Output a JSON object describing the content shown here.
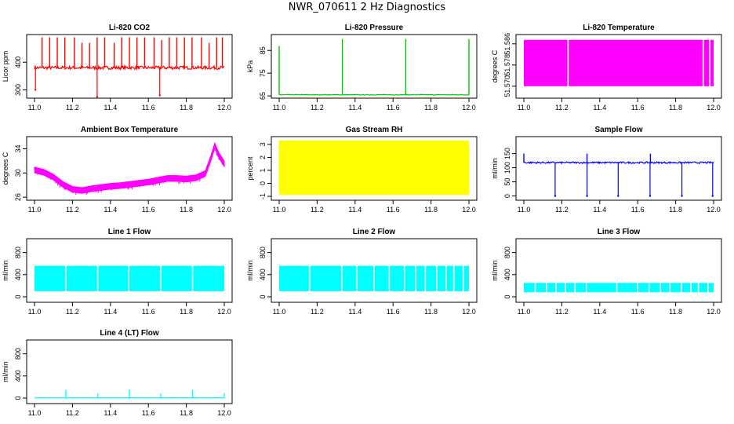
{
  "page_title": "NWR_070611  2 Hz Diagnostics",
  "colors": {
    "red": "#ff0000",
    "green": "#00cc00",
    "magenta": "#ff00ff",
    "yellow": "#ffff00",
    "blue": "#0000ff",
    "cyan": "#00ffff",
    "axis": "#000000"
  },
  "chart_data": [
    {
      "type": "line",
      "title": "Li-820 CO2",
      "ylabel": "Licor ppm",
      "color": "red",
      "xlim": [
        11.0,
        12.0
      ],
      "ylim": [
        270,
        500
      ],
      "xticks": [
        11.0,
        11.2,
        11.4,
        11.6,
        11.8,
        12.0
      ],
      "xtick_labels": [
        "11.0",
        "11.2",
        "11.4",
        "11.6",
        "11.8",
        "12.0"
      ],
      "yticks": [
        300,
        400
      ],
      "ytick_labels": [
        "300",
        "400"
      ],
      "series": [
        {
          "baseline": 380,
          "noise": 6,
          "spikes_up": [
            {
              "x": 11.04,
              "y": 490
            },
            {
              "x": 11.08,
              "y": 490
            },
            {
              "x": 11.12,
              "y": 490
            },
            {
              "x": 11.16,
              "y": 490
            },
            {
              "x": 11.21,
              "y": 490
            },
            {
              "x": 11.25,
              "y": 470
            },
            {
              "x": 11.29,
              "y": 470
            },
            {
              "x": 11.33,
              "y": 490
            },
            {
              "x": 11.37,
              "y": 490
            },
            {
              "x": 11.42,
              "y": 470
            },
            {
              "x": 11.46,
              "y": 490
            },
            {
              "x": 11.5,
              "y": 490
            },
            {
              "x": 11.54,
              "y": 490
            },
            {
              "x": 11.58,
              "y": 490
            },
            {
              "x": 11.63,
              "y": 490
            },
            {
              "x": 11.67,
              "y": 480
            },
            {
              "x": 11.71,
              "y": 490
            },
            {
              "x": 11.75,
              "y": 490
            },
            {
              "x": 11.79,
              "y": 490
            },
            {
              "x": 11.83,
              "y": 490
            },
            {
              "x": 11.88,
              "y": 490
            },
            {
              "x": 11.92,
              "y": 470
            },
            {
              "x": 11.96,
              "y": 490
            },
            {
              "x": 11.99,
              "y": 490
            }
          ],
          "spikes_down": [
            {
              "x": 11.005,
              "y": 300
            },
            {
              "x": 11.33,
              "y": 275
            },
            {
              "x": 11.66,
              "y": 280
            }
          ]
        }
      ]
    },
    {
      "type": "line",
      "title": "Li-820 Pressure",
      "ylabel": "kPa",
      "color": "green",
      "xlim": [
        11.0,
        12.0
      ],
      "ylim": [
        64,
        92
      ],
      "xticks": [
        11.0,
        11.2,
        11.4,
        11.6,
        11.8,
        12.0
      ],
      "xtick_labels": [
        "11.0",
        "11.2",
        "11.4",
        "11.6",
        "11.8",
        "12.0"
      ],
      "yticks": [
        65,
        75,
        85
      ],
      "ytick_labels": [
        "65",
        "75",
        "85"
      ],
      "series": [
        {
          "baseline": 65.5,
          "noise": 0.15,
          "spikes_up": [
            {
              "x": 11.0,
              "y": 87
            },
            {
              "x": 11.333,
              "y": 90
            },
            {
              "x": 11.667,
              "y": 90
            },
            {
              "x": 12.0,
              "y": 90
            }
          ],
          "spikes_down": []
        }
      ]
    },
    {
      "type": "area",
      "title": "Li-820 Temperature",
      "ylabel": "degrees C",
      "color": "magenta",
      "xlim": [
        11.0,
        12.0
      ],
      "ylim": [
        51.5655,
        51.5895
      ],
      "xticks": [
        11.0,
        11.2,
        11.4,
        11.6,
        11.8,
        12.0
      ],
      "xtick_labels": [
        "11.0",
        "11.2",
        "11.4",
        "11.6",
        "11.8",
        "12.0"
      ],
      "yticks": [
        51.57,
        51.578,
        51.586
      ],
      "ytick_labels": [
        "51.570",
        "51.578",
        "51.586"
      ],
      "series": [
        {
          "low": 51.57,
          "high": 51.5875,
          "gaps": [
            11.233,
            11.945,
            11.98
          ]
        }
      ]
    },
    {
      "type": "line",
      "title": "Ambient Box Temperature",
      "ylabel": "degrees C",
      "color": "magenta",
      "xlim": [
        11.0,
        12.0
      ],
      "ylim": [
        25.5,
        36
      ],
      "xticks": [
        11.0,
        11.2,
        11.4,
        11.6,
        11.8,
        12.0
      ],
      "xtick_labels": [
        "11.0",
        "11.2",
        "11.4",
        "11.6",
        "11.8",
        "12.0"
      ],
      "yticks": [
        26,
        30,
        34
      ],
      "ytick_labels": [
        "26",
        "30",
        "34"
      ],
      "series": [
        {
          "x": [
            11.0,
            11.05,
            11.1,
            11.15,
            11.2,
            11.25,
            11.3,
            11.35,
            11.4,
            11.45,
            11.5,
            11.55,
            11.6,
            11.65,
            11.7,
            11.75,
            11.8,
            11.85,
            11.9,
            11.93,
            11.95,
            11.97,
            12.0
          ],
          "y": [
            31.0,
            30.6,
            29.8,
            28.6,
            27.8,
            27.6,
            27.9,
            28.1,
            28.3,
            28.4,
            28.6,
            28.8,
            29.0,
            29.3,
            29.6,
            29.6,
            29.5,
            29.7,
            30.4,
            33.0,
            35.0,
            33.5,
            32.0
          ],
          "noise_down": 1.0
        }
      ]
    },
    {
      "type": "area",
      "title": "Gas Stream RH",
      "ylabel": "percent",
      "color": "yellow",
      "xlim": [
        11.0,
        12.0
      ],
      "ylim": [
        -1.3,
        3.6
      ],
      "xticks": [
        11.0,
        11.2,
        11.4,
        11.6,
        11.8,
        12.0
      ],
      "xtick_labels": [
        "11.0",
        "11.2",
        "11.4",
        "11.6",
        "11.8",
        "12.0"
      ],
      "yticks": [
        -1,
        0,
        1,
        2,
        3
      ],
      "ytick_labels": [
        "-1",
        "0",
        "1",
        "2",
        "3"
      ],
      "series": [
        {
          "low": -0.9,
          "high": 3.3,
          "core_low": 0.0,
          "core_high": 2.5
        }
      ]
    },
    {
      "type": "line",
      "title": "Sample Flow",
      "ylabel": "ml/min",
      "color": "blue",
      "xlim": [
        11.0,
        12.0
      ],
      "ylim": [
        -15,
        210
      ],
      "xticks": [
        11.0,
        11.2,
        11.4,
        11.6,
        11.8,
        12.0
      ],
      "xtick_labels": [
        "11.0",
        "11.2",
        "11.4",
        "11.6",
        "11.8",
        "12.0"
      ],
      "yticks": [
        0,
        50,
        100,
        150
      ],
      "ytick_labels": [
        "0",
        "50",
        "100",
        "150"
      ],
      "series": [
        {
          "baseline": 118,
          "noise": 3,
          "spikes_up": [
            {
              "x": 11.0,
              "y": 150
            },
            {
              "x": 11.333,
              "y": 150
            },
            {
              "x": 11.667,
              "y": 150
            }
          ],
          "spikes_down": [
            {
              "x": 11.165,
              "y": 0
            },
            {
              "x": 11.333,
              "y": 0
            },
            {
              "x": 11.497,
              "y": 0
            },
            {
              "x": 11.665,
              "y": 0
            },
            {
              "x": 11.833,
              "y": 0
            },
            {
              "x": 11.995,
              "y": 0
            }
          ]
        }
      ]
    },
    {
      "type": "area",
      "title": "Line 1 Flow",
      "ylabel": "ml/min",
      "color": "cyan",
      "xlim": [
        11.0,
        12.0
      ],
      "ylim": [
        -100,
        1050
      ],
      "xticks": [
        11.0,
        11.2,
        11.4,
        11.6,
        11.8,
        12.0
      ],
      "xtick_labels": [
        "11.0",
        "11.2",
        "11.4",
        "11.6",
        "11.8",
        "12.0"
      ],
      "yticks": [
        0,
        400,
        800
      ],
      "ytick_labels": [
        "0",
        "400",
        "800"
      ],
      "series": [
        {
          "low": 100,
          "high": 560,
          "gaps": [
            11.165,
            11.333,
            11.497,
            11.665,
            11.833
          ]
        }
      ]
    },
    {
      "type": "area",
      "title": "Line 2 Flow",
      "ylabel": "ml/min",
      "color": "cyan",
      "xlim": [
        11.0,
        12.0
      ],
      "ylim": [
        -100,
        1050
      ],
      "xticks": [
        11.0,
        11.2,
        11.4,
        11.6,
        11.8,
        12.0
      ],
      "xtick_labels": [
        "11.0",
        "11.2",
        "11.4",
        "11.6",
        "11.8",
        "12.0"
      ],
      "yticks": [
        0,
        400,
        800
      ],
      "ytick_labels": [
        "0",
        "400",
        "800"
      ],
      "series": [
        {
          "low": 100,
          "high": 560,
          "gaps": [
            11.16,
            11.33,
            11.41,
            11.5,
            11.58,
            11.66,
            11.72,
            11.77,
            11.83,
            11.88,
            11.92,
            11.97
          ]
        }
      ]
    },
    {
      "type": "area",
      "title": "Line 3 Flow",
      "ylabel": "ml/min",
      "color": "cyan",
      "xlim": [
        11.0,
        12.0
      ],
      "ylim": [
        -100,
        1050
      ],
      "xticks": [
        11.0,
        11.2,
        11.4,
        11.6,
        11.8,
        12.0
      ],
      "xtick_labels": [
        "11.0",
        "11.2",
        "11.4",
        "11.6",
        "11.8",
        "12.0"
      ],
      "yticks": [
        0,
        400,
        800
      ],
      "ytick_labels": [
        "0",
        "400",
        "800"
      ],
      "series": [
        {
          "low": 80,
          "high": 250,
          "gaps": [
            11.06,
            11.12,
            11.17,
            11.22,
            11.27,
            11.33,
            11.49,
            11.6,
            11.66,
            11.72,
            11.77,
            11.83,
            11.88,
            11.92,
            11.97
          ]
        }
      ]
    },
    {
      "type": "line",
      "title": "Line 4 (LT) Flow",
      "ylabel": "ml/min",
      "color": "cyan",
      "xlim": [
        11.0,
        12.0
      ],
      "ylim": [
        -100,
        1050
      ],
      "xticks": [
        11.0,
        11.2,
        11.4,
        11.6,
        11.8,
        12.0
      ],
      "xtick_labels": [
        "11.0",
        "11.2",
        "11.4",
        "11.6",
        "11.8",
        "12.0"
      ],
      "yticks": [
        0,
        400,
        800
      ],
      "ytick_labels": [
        "0",
        "400",
        "800"
      ],
      "series": [
        {
          "baseline": 5,
          "noise": 2,
          "spikes_up": [
            {
              "x": 11.165,
              "y": 150
            },
            {
              "x": 11.333,
              "y": 80
            },
            {
              "x": 11.5,
              "y": 160
            },
            {
              "x": 11.665,
              "y": 80
            },
            {
              "x": 11.833,
              "y": 150
            },
            {
              "x": 12.0,
              "y": 90
            }
          ],
          "spikes_down": []
        }
      ]
    }
  ]
}
